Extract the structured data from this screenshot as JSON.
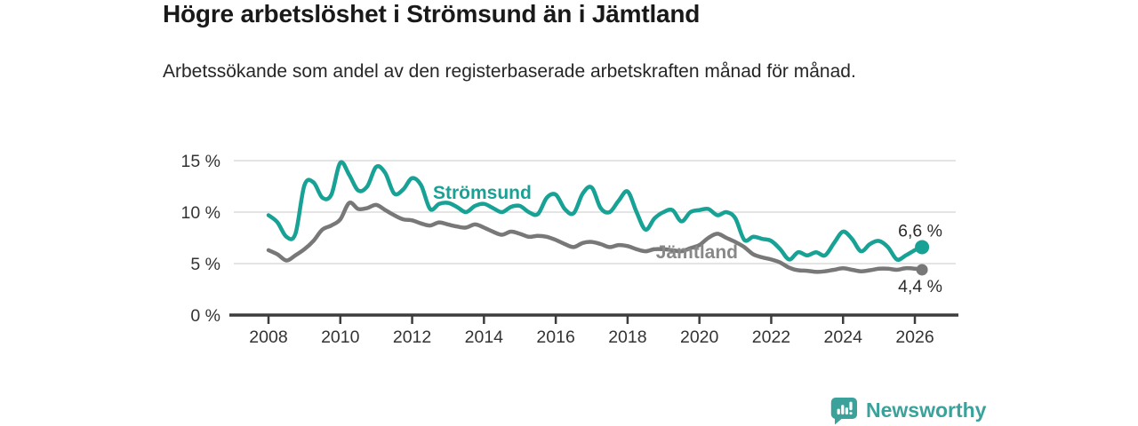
{
  "header": {
    "title": "Högre arbetslöshet i Strömsund än i Jämtland",
    "subtitle": "Arbetssökande som andel av den registerbaserade arbetskraften månad för månad."
  },
  "footer": {
    "brand": "Newsworthy",
    "brand_color": "#3ba29b",
    "logo_icon": "bar-chart-speech-bubble-icon"
  },
  "colors": {
    "stromsund_line": "#17a295",
    "jamtland_line": "#787878",
    "jamtland_label": "#888888",
    "axis": "#3c3c3c",
    "grid": "#dcdcdc",
    "tick_text": "#333333",
    "value_text": "#2b2b2b"
  },
  "chart_data": {
    "type": "line",
    "title": "Högre arbetslöshet i Strömsund än i Jämtland",
    "xlabel": "",
    "ylabel": "Arbetssökande som andel av den registerbaserade arbetskraften (%)",
    "grid": "horizontal",
    "legend_position": "inline-labels",
    "ylim": [
      0,
      15
    ],
    "yticks": [
      0,
      5,
      10,
      15
    ],
    "ytick_labels": [
      "0 %",
      "5 %",
      "10 %",
      "15 %"
    ],
    "xticks": [
      2008,
      2010,
      2012,
      2014,
      2016,
      2018,
      2020,
      2022,
      2024,
      2026
    ],
    "xtick_labels": [
      "2008",
      "2010",
      "2012",
      "2014",
      "2016",
      "2018",
      "2020",
      "2022",
      "2024",
      "2026"
    ],
    "x": [
      2008.0,
      2008.25,
      2008.5,
      2008.75,
      2009.0,
      2009.25,
      2009.5,
      2009.75,
      2010.0,
      2010.25,
      2010.5,
      2010.75,
      2011.0,
      2011.25,
      2011.5,
      2011.75,
      2012.0,
      2012.25,
      2012.5,
      2012.75,
      2013.0,
      2013.25,
      2013.5,
      2013.75,
      2014.0,
      2014.25,
      2014.5,
      2014.75,
      2015.0,
      2015.25,
      2015.5,
      2015.75,
      2016.0,
      2016.25,
      2016.5,
      2016.75,
      2017.0,
      2017.25,
      2017.5,
      2017.75,
      2018.0,
      2018.25,
      2018.5,
      2018.75,
      2019.0,
      2019.25,
      2019.5,
      2019.75,
      2020.0,
      2020.25,
      2020.5,
      2020.75,
      2021.0,
      2021.25,
      2021.5,
      2021.75,
      2022.0,
      2022.25,
      2022.5,
      2022.75,
      2023.0,
      2023.25,
      2023.5,
      2023.75,
      2024.0,
      2024.25,
      2024.5,
      2024.75,
      2025.0,
      2025.25,
      2025.5,
      2025.75,
      2026.0,
      2026.2
    ],
    "series": [
      {
        "name": "Strömsund",
        "color": "#17a295",
        "label_color": "#17a295",
        "end_label": "6,6 %",
        "end_value": 6.6,
        "values": [
          9.7,
          9.0,
          7.6,
          7.9,
          12.6,
          12.9,
          11.4,
          11.7,
          14.8,
          13.6,
          12.1,
          12.5,
          14.4,
          13.8,
          11.8,
          12.2,
          13.3,
          12.6,
          10.3,
          10.8,
          10.9,
          10.5,
          10.0,
          10.6,
          10.8,
          10.4,
          10.0,
          10.5,
          10.6,
          10.0,
          9.8,
          11.4,
          11.7,
          10.3,
          9.9,
          11.8,
          12.4,
          10.4,
          10.0,
          11.1,
          12.0,
          10.0,
          8.3,
          9.4,
          10.0,
          10.2,
          9.1,
          10.0,
          10.2,
          10.3,
          9.7,
          10.0,
          9.4,
          7.3,
          7.6,
          7.4,
          7.2,
          6.4,
          5.4,
          6.1,
          5.8,
          6.1,
          5.8,
          7.0,
          8.1,
          7.4,
          6.2,
          6.9,
          7.2,
          6.6,
          5.4,
          5.8,
          6.3,
          6.6
        ]
      },
      {
        "name": "Jämtland",
        "color": "#787878",
        "label_color": "#888888",
        "end_label": "4,4 %",
        "end_value": 4.4,
        "values": [
          6.3,
          5.9,
          5.3,
          5.8,
          6.4,
          7.2,
          8.3,
          8.7,
          9.3,
          10.9,
          10.3,
          10.4,
          10.7,
          10.2,
          9.7,
          9.3,
          9.2,
          8.9,
          8.7,
          9.0,
          8.8,
          8.6,
          8.5,
          8.8,
          8.5,
          8.1,
          7.8,
          8.1,
          7.9,
          7.6,
          7.7,
          7.6,
          7.3,
          6.9,
          6.6,
          7.0,
          7.1,
          6.9,
          6.6,
          6.8,
          6.7,
          6.4,
          6.2,
          6.4,
          6.4,
          6.3,
          6.2,
          6.5,
          6.8,
          7.5,
          7.9,
          7.5,
          7.1,
          6.6,
          5.9,
          5.6,
          5.4,
          5.1,
          4.6,
          4.35,
          4.3,
          4.2,
          4.25,
          4.4,
          4.55,
          4.4,
          4.25,
          4.35,
          4.5,
          4.5,
          4.4,
          4.55,
          4.5,
          4.4
        ]
      }
    ]
  }
}
